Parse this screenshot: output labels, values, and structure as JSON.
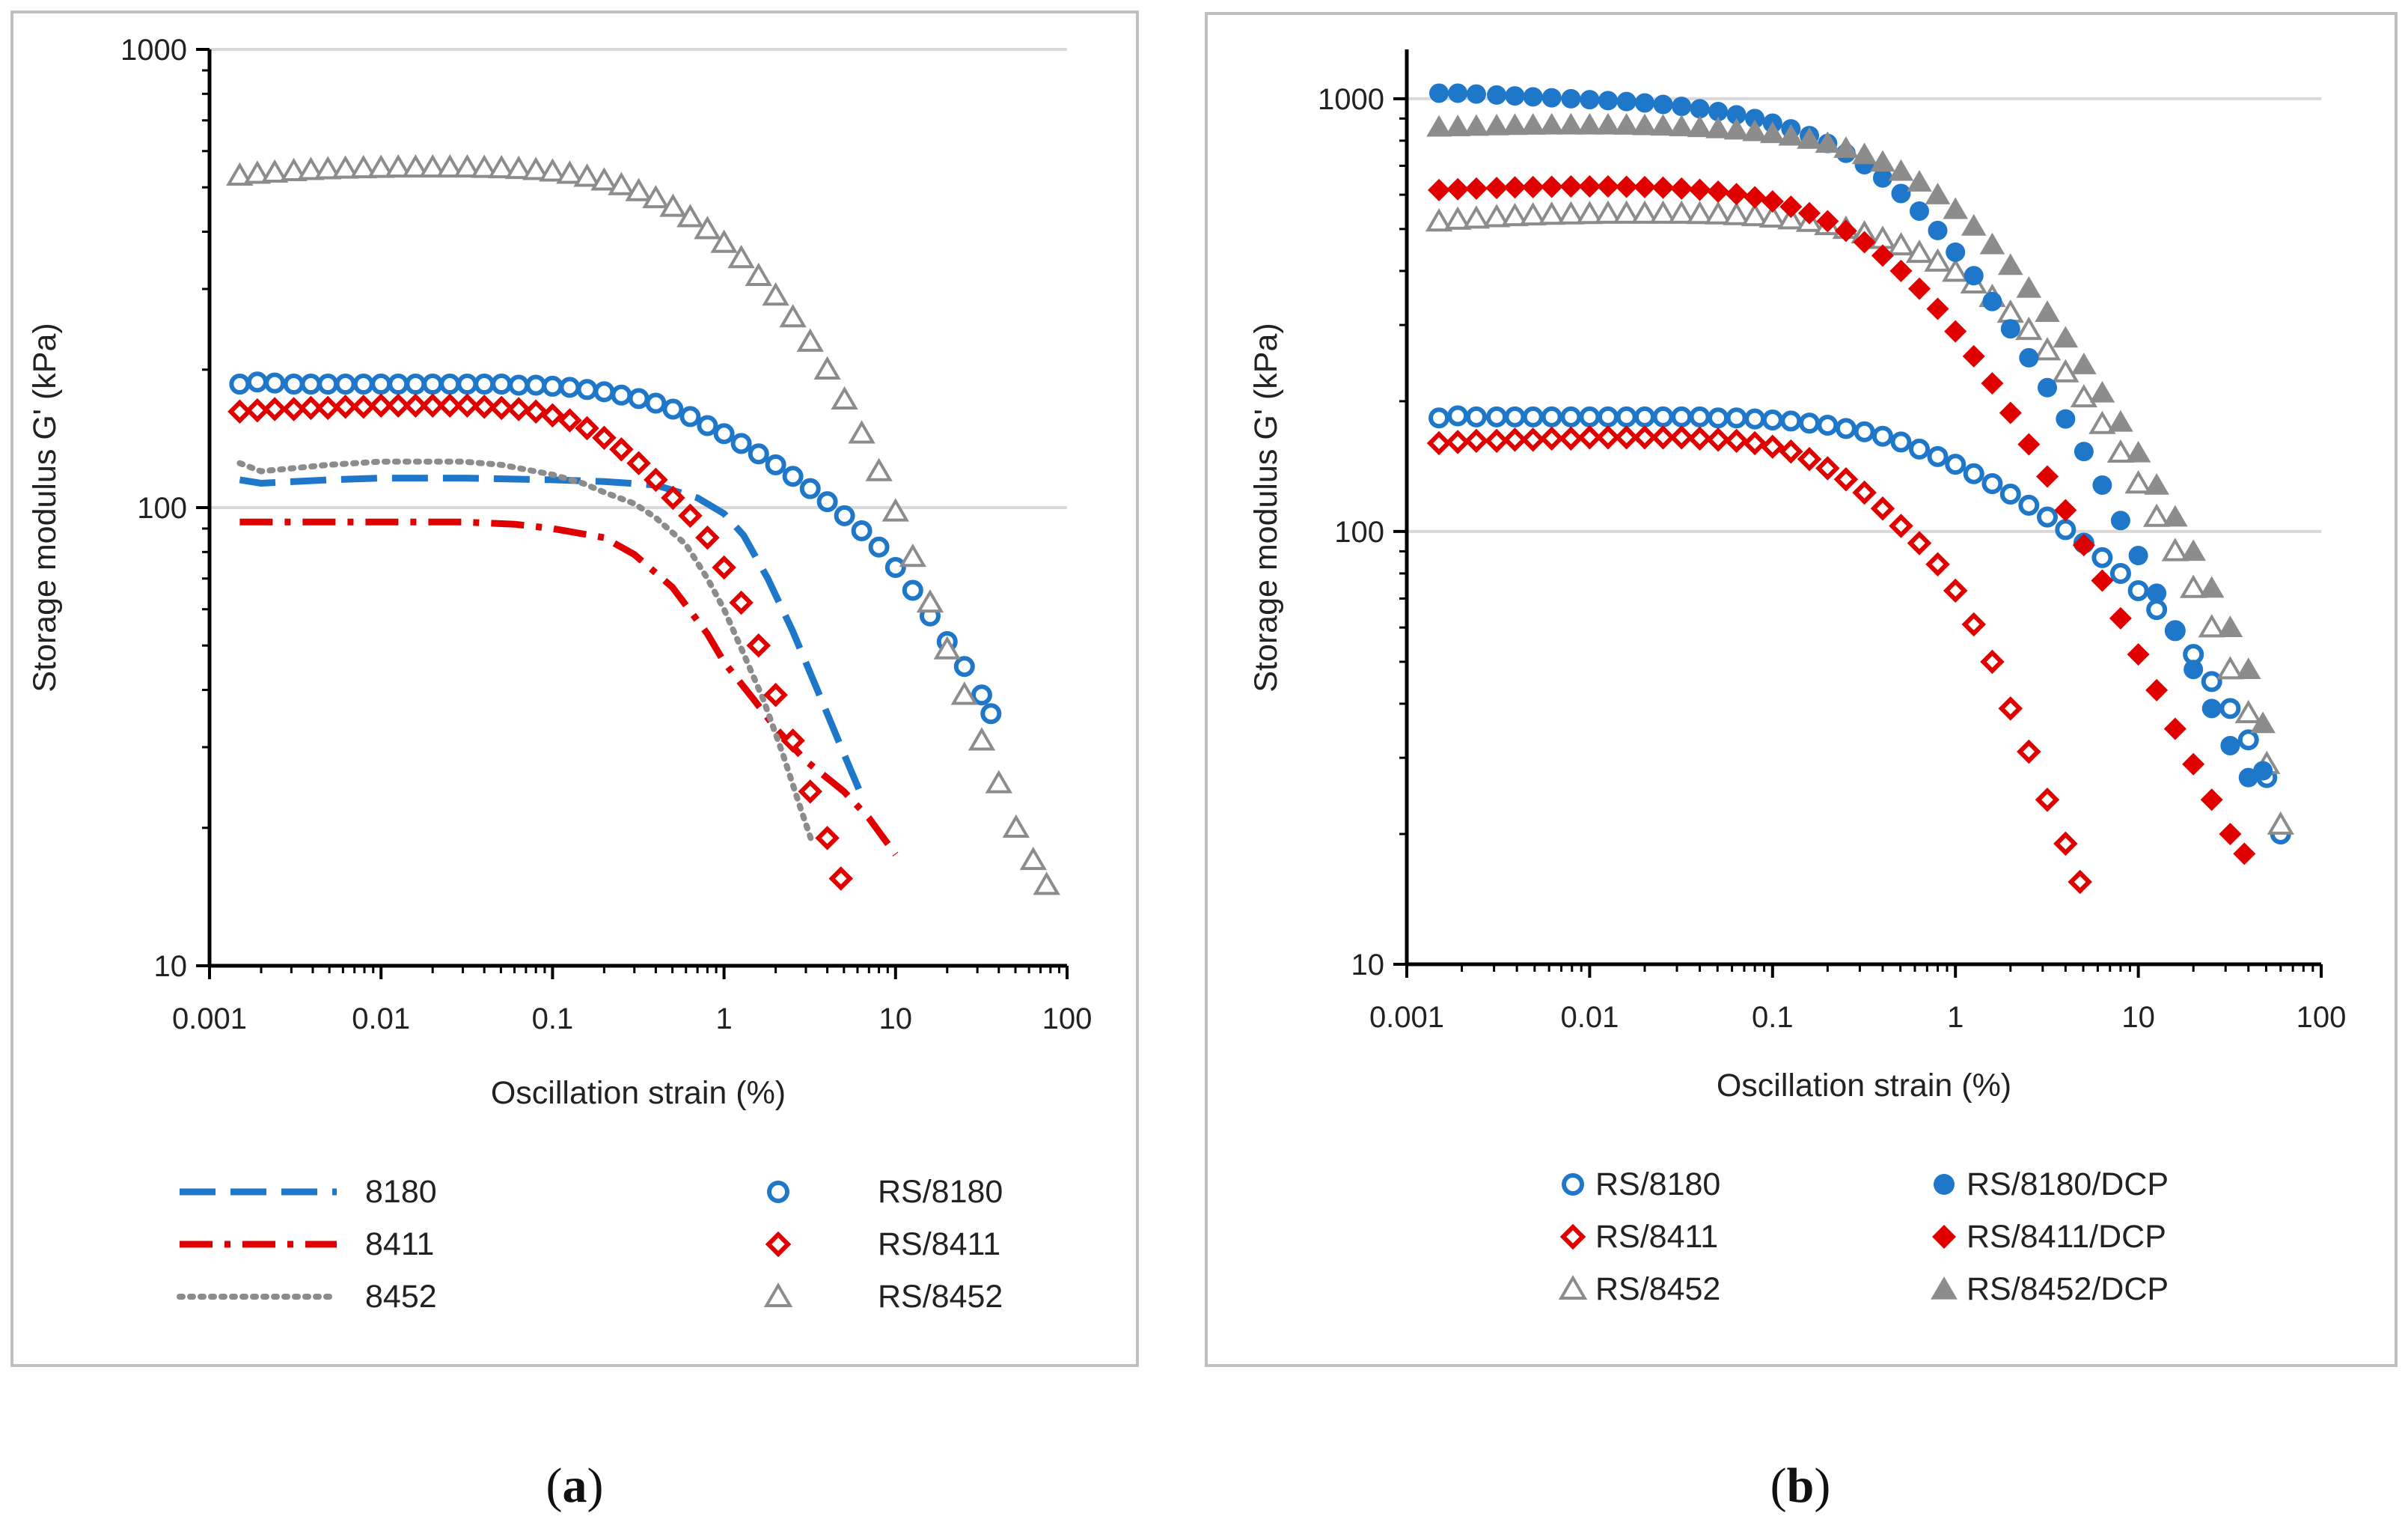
{
  "captions": {
    "a": {
      "open": "(",
      "letter": "a",
      "close": ")"
    },
    "b": {
      "open": "(",
      "letter": "b",
      "close": ")"
    }
  },
  "colors": {
    "blue": "#1f77c9",
    "red": "#e00000",
    "gray": "#8c8c8c",
    "grid": "#d9d9d9",
    "frame": "#bfbfbf",
    "axis": "#000000"
  },
  "chart_data": [
    {
      "id": "a",
      "type": "line",
      "title": "",
      "xlabel": "Oscillation strain (%)",
      "ylabel": "Storage modulus G' (kPa)",
      "xscale": "log",
      "yscale": "log",
      "xlim": [
        0.001,
        100
      ],
      "ylim": [
        10,
        1000
      ],
      "xticks": [
        "0.001",
        "0.01",
        "0.1",
        "1",
        "10",
        "100"
      ],
      "yticks": [
        "10",
        "100",
        "1000"
      ],
      "grid": "horizontal",
      "legend_position": "bottom",
      "series": [
        {
          "name": "8180",
          "style": "dashed",
          "color": "blue",
          "marker": "none",
          "x": [
            0.0015,
            0.002,
            0.005,
            0.01,
            0.03,
            0.1,
            0.2,
            0.4,
            0.7,
            1.0,
            1.3,
            1.8,
            2.5,
            3.5,
            5,
            6.5
          ],
          "y": [
            115,
            113,
            115,
            116,
            116,
            115,
            114,
            112,
            105,
            97,
            87,
            70,
            54,
            40,
            29,
            23
          ]
        },
        {
          "name": "8411",
          "style": "dashdot",
          "color": "red",
          "marker": "none",
          "x": [
            0.0015,
            0.005,
            0.01,
            0.03,
            0.06,
            0.1,
            0.2,
            0.3,
            0.5,
            0.8,
            1.0,
            1.5,
            2.0,
            3.0,
            5,
            7,
            10
          ],
          "y": [
            93,
            93,
            93,
            93,
            92,
            90,
            86,
            79,
            67,
            53,
            46,
            38,
            33,
            28,
            24,
            21,
            17.5
          ]
        },
        {
          "name": "8452",
          "style": "dotted",
          "color": "gray",
          "marker": "none",
          "x": [
            0.0015,
            0.002,
            0.005,
            0.01,
            0.03,
            0.05,
            0.1,
            0.15,
            0.2,
            0.3,
            0.4,
            0.6,
            0.8,
            1.0,
            1.3,
            1.7,
            2.2,
            2.8,
            3.2
          ],
          "y": [
            125,
            120,
            124,
            126,
            126,
            124,
            118,
            113,
            108,
            102,
            95,
            83,
            70,
            60,
            48,
            38,
            29,
            22,
            19
          ]
        },
        {
          "name": "RS/8180",
          "style": "none",
          "color": "blue",
          "marker": "circle-open",
          "x": [
            0.0015,
            0.0019,
            0.0024,
            0.0031,
            0.0039,
            0.0049,
            0.0062,
            0.0079,
            0.01,
            0.0126,
            0.0159,
            0.02,
            0.0252,
            0.0318,
            0.04,
            0.0504,
            0.0635,
            0.08,
            0.1,
            0.126,
            0.159,
            0.2,
            0.252,
            0.318,
            0.4,
            0.504,
            0.635,
            0.8,
            1.0,
            1.26,
            1.59,
            2.0,
            2.52,
            3.18,
            4.0,
            5.04,
            6.35,
            8.0,
            10.0,
            12.6,
            15.9,
            20.0,
            25.2,
            31.8,
            36
          ],
          "y": [
            186,
            188,
            187,
            186,
            186,
            186,
            186,
            186,
            186,
            186,
            186,
            186,
            186,
            186,
            186,
            186,
            185,
            185,
            184,
            183,
            181,
            179,
            176,
            173,
            169,
            164,
            158,
            151,
            145,
            138,
            131,
            124,
            117,
            110,
            103,
            96,
            89,
            82,
            74,
            66,
            58,
            51,
            45,
            39,
            35.5
          ]
        },
        {
          "name": "RS/8411",
          "style": "none",
          "color": "red",
          "marker": "diamond-open",
          "x": [
            0.0015,
            0.0019,
            0.0024,
            0.0031,
            0.0039,
            0.0049,
            0.0062,
            0.0079,
            0.01,
            0.0126,
            0.0159,
            0.02,
            0.0252,
            0.0318,
            0.04,
            0.0504,
            0.0635,
            0.08,
            0.1,
            0.126,
            0.159,
            0.2,
            0.252,
            0.318,
            0.4,
            0.504,
            0.635,
            0.8,
            1.0,
            1.26,
            1.59,
            2.0,
            2.52,
            3.18,
            4.0,
            4.8
          ],
          "y": [
            162,
            163,
            164,
            164,
            165,
            165,
            166,
            166,
            167,
            167,
            167,
            167,
            167,
            167,
            166,
            165,
            164,
            162,
            159,
            155,
            149,
            142,
            134,
            125,
            115,
            105,
            96,
            86,
            74,
            62,
            50,
            39,
            31,
            24,
            19,
            15.5
          ]
        },
        {
          "name": "RS/8452",
          "style": "none",
          "color": "gray",
          "marker": "triangle-open",
          "x": [
            0.0015,
            0.0019,
            0.0024,
            0.0031,
            0.0039,
            0.0049,
            0.0062,
            0.0079,
            0.01,
            0.0126,
            0.0159,
            0.02,
            0.0252,
            0.0318,
            0.04,
            0.0504,
            0.0635,
            0.08,
            0.1,
            0.126,
            0.159,
            0.2,
            0.252,
            0.318,
            0.4,
            0.504,
            0.635,
            0.8,
            1.0,
            1.26,
            1.59,
            2.0,
            2.52,
            3.18,
            4.0,
            5.04,
            6.35,
            8.0,
            10.0,
            12.6,
            15.9,
            20.0,
            25.2,
            31.8,
            40.0,
            50.4,
            63.5,
            76
          ],
          "y": [
            530,
            535,
            538,
            542,
            545,
            547,
            549,
            550,
            551,
            552,
            552,
            552,
            552,
            552,
            551,
            550,
            548,
            545,
            541,
            535,
            527,
            517,
            505,
            490,
            473,
            453,
            430,
            405,
            378,
            350,
            320,
            290,
            260,
            230,
            200,
            172,
            145,
            120,
            98,
            78,
            62,
            49,
            39,
            31,
            25,
            20,
            17,
            15
          ]
        }
      ]
    },
    {
      "id": "b",
      "type": "scatter",
      "title": "",
      "xlabel": "Oscillation strain (%)",
      "ylabel": "Storage modulus G' (kPa)",
      "xscale": "log",
      "yscale": "log",
      "xlim": [
        0.001,
        100
      ],
      "ylim": [
        10,
        1300
      ],
      "xticks": [
        "0.001",
        "0.01",
        "0.1",
        "1",
        "10",
        "100"
      ],
      "yticks": [
        "10",
        "100",
        "1000"
      ],
      "grid": "horizontal",
      "legend_position": "bottom",
      "series": [
        {
          "name": "RS/8180",
          "color": "blue",
          "marker": "circle-open",
          "x": [
            0.0015,
            0.0019,
            0.0024,
            0.0031,
            0.0039,
            0.0049,
            0.0062,
            0.0079,
            0.01,
            0.0126,
            0.0159,
            0.02,
            0.0252,
            0.0318,
            0.04,
            0.0504,
            0.0635,
            0.08,
            0.1,
            0.126,
            0.159,
            0.2,
            0.252,
            0.318,
            0.4,
            0.504,
            0.635,
            0.8,
            1.0,
            1.26,
            1.59,
            2.0,
            2.52,
            3.18,
            4.0,
            5.04,
            6.35,
            8.0,
            10.0,
            12.6,
            15.9,
            20.0,
            25.2,
            31.8,
            40.0,
            50.4,
            60
          ],
          "y": [
            183,
            185,
            184,
            184,
            184,
            184,
            184,
            184,
            184,
            184,
            184,
            184,
            184,
            184,
            184,
            183,
            183,
            182,
            181,
            180,
            178,
            176,
            173,
            170,
            166,
            161,
            155,
            149,
            143,
            136,
            129,
            122,
            115,
            108,
            101,
            94,
            87,
            80,
            73,
            66,
            59,
            52,
            45,
            39,
            33,
            27,
            20
          ]
        },
        {
          "name": "RS/8411",
          "color": "red",
          "marker": "diamond-open",
          "x": [
            0.0015,
            0.0019,
            0.0024,
            0.0031,
            0.0039,
            0.0049,
            0.0062,
            0.0079,
            0.01,
            0.0126,
            0.0159,
            0.02,
            0.0252,
            0.0318,
            0.04,
            0.0504,
            0.0635,
            0.08,
            0.1,
            0.126,
            0.159,
            0.2,
            0.252,
            0.318,
            0.4,
            0.504,
            0.635,
            0.8,
            1.0,
            1.26,
            1.59,
            2.0,
            2.52,
            3.18,
            4.0,
            4.8
          ],
          "y": [
            160,
            161,
            162,
            162,
            163,
            163,
            164,
            164,
            165,
            165,
            165,
            165,
            165,
            165,
            164,
            163,
            162,
            160,
            157,
            153,
            147,
            140,
            132,
            123,
            113,
            103,
            94,
            84,
            73,
            61,
            50,
            39,
            31,
            24,
            19,
            15.5
          ]
        },
        {
          "name": "RS/8452",
          "color": "gray",
          "marker": "triangle-open",
          "x": [
            0.0015,
            0.0019,
            0.0024,
            0.0031,
            0.0039,
            0.0049,
            0.0062,
            0.0079,
            0.01,
            0.0126,
            0.0159,
            0.02,
            0.0252,
            0.0318,
            0.04,
            0.0504,
            0.0635,
            0.08,
            0.1,
            0.126,
            0.159,
            0.2,
            0.252,
            0.318,
            0.4,
            0.504,
            0.635,
            0.8,
            1.0,
            1.26,
            1.59,
            2.0,
            2.52,
            3.18,
            4.0,
            5.04,
            6.35,
            8.0,
            10.0,
            12.6,
            15.9,
            20.0,
            25.2,
            31.8,
            40.0,
            50.4,
            60
          ],
          "y": [
            520,
            525,
            528,
            532,
            535,
            537,
            539,
            540,
            541,
            542,
            542,
            542,
            542,
            542,
            541,
            540,
            538,
            535,
            531,
            526,
            519,
            510,
            500,
            488,
            474,
            458,
            440,
            420,
            398,
            374,
            348,
            320,
            292,
            262,
            233,
            204,
            177,
            152,
            129,
            108,
            90,
            74,
            60,
            48,
            38,
            29,
            21
          ]
        },
        {
          "name": "RS/8180/DCP",
          "color": "blue",
          "marker": "circle-filled",
          "x": [
            0.0015,
            0.0019,
            0.0024,
            0.0031,
            0.0039,
            0.0049,
            0.0062,
            0.0079,
            0.01,
            0.0126,
            0.0159,
            0.02,
            0.0252,
            0.0318,
            0.04,
            0.0504,
            0.0635,
            0.08,
            0.1,
            0.126,
            0.159,
            0.2,
            0.252,
            0.318,
            0.4,
            0.504,
            0.635,
            0.8,
            1.0,
            1.26,
            1.59,
            2.0,
            2.52,
            3.18,
            4.0,
            5.04,
            6.35,
            8.0,
            10.0,
            12.6,
            15.9,
            20.0,
            25.2,
            31.8,
            40.0,
            48
          ],
          "y": [
            1030,
            1030,
            1025,
            1020,
            1015,
            1010,
            1005,
            1000,
            995,
            990,
            985,
            978,
            970,
            960,
            948,
            934,
            918,
            900,
            878,
            852,
            822,
            788,
            748,
            704,
            656,
            604,
            550,
            496,
            442,
            390,
            340,
            294,
            252,
            215,
            182,
            153,
            128,
            106,
            88,
            72,
            59,
            48,
            39,
            32,
            27,
            28
          ]
        },
        {
          "name": "RS/8411/DCP",
          "color": "red",
          "marker": "diamond-filled",
          "x": [
            0.0015,
            0.0019,
            0.0024,
            0.0031,
            0.0039,
            0.0049,
            0.0062,
            0.0079,
            0.01,
            0.0126,
            0.0159,
            0.02,
            0.0252,
            0.0318,
            0.04,
            0.0504,
            0.0635,
            0.08,
            0.1,
            0.126,
            0.159,
            0.2,
            0.252,
            0.318,
            0.4,
            0.504,
            0.635,
            0.8,
            1.0,
            1.26,
            1.59,
            2.0,
            2.52,
            3.18,
            4.0,
            5.04,
            6.35,
            8.0,
            10.0,
            12.6,
            15.9,
            20.0,
            25.2,
            31.8,
            38
          ],
          "y": [
            615,
            618,
            620,
            622,
            624,
            625,
            626,
            627,
            627,
            627,
            626,
            625,
            623,
            620,
            616,
            610,
            602,
            592,
            579,
            563,
            544,
            521,
            495,
            466,
            434,
            400,
            364,
            327,
            290,
            254,
            220,
            188,
            159,
            134,
            112,
            93,
            77,
            63,
            52,
            43,
            35,
            29,
            24,
            20,
            18
          ]
        },
        {
          "name": "RS/8452/DCP",
          "color": "gray",
          "marker": "triangle-filled",
          "x": [
            0.0015,
            0.0019,
            0.0024,
            0.0031,
            0.0039,
            0.0049,
            0.0062,
            0.0079,
            0.01,
            0.0126,
            0.0159,
            0.02,
            0.0252,
            0.0318,
            0.04,
            0.0504,
            0.0635,
            0.08,
            0.1,
            0.126,
            0.159,
            0.2,
            0.252,
            0.318,
            0.4,
            0.504,
            0.635,
            0.8,
            1.0,
            1.26,
            1.59,
            2.0,
            2.52,
            3.18,
            4.0,
            5.04,
            6.35,
            8.0,
            10.0,
            12.6,
            15.9,
            20.0,
            25.2,
            31.8,
            40.0,
            48
          ],
          "y": [
            860,
            862,
            864,
            866,
            868,
            869,
            870,
            870,
            870,
            870,
            869,
            867,
            865,
            862,
            858,
            853,
            847,
            840,
            831,
            820,
            806,
            789,
            768,
            743,
            714,
            680,
            642,
            600,
            555,
            508,
            460,
            412,
            365,
            321,
            280,
            243,
            209,
            179,
            152,
            128,
            108,
            90,
            74,
            60,
            48,
            36
          ]
        }
      ]
    }
  ]
}
